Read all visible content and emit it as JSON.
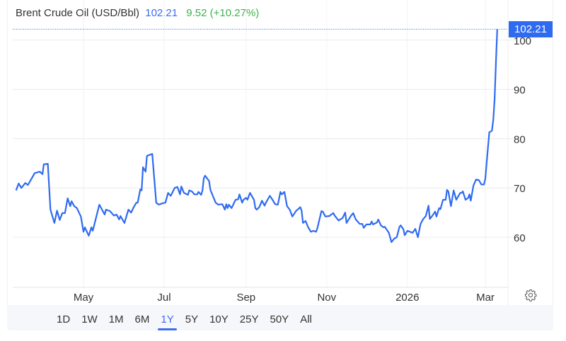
{
  "header": {
    "title": "Brent Crude Oil (USD/Bbl)",
    "price": "102.21",
    "change": "9.52 (+10.27%)"
  },
  "colors": {
    "line": "#2f6bf0",
    "price": "#3b6cf5",
    "change": "#3cb44b",
    "tag_bg": "#2f6bf0"
  },
  "ranges": {
    "items": [
      {
        "label": "1D"
      },
      {
        "label": "1W"
      },
      {
        "label": "1M"
      },
      {
        "label": "6M"
      },
      {
        "label": "1Y",
        "active": true
      },
      {
        "label": "5Y"
      },
      {
        "label": "10Y"
      },
      {
        "label": "25Y"
      },
      {
        "label": "50Y"
      },
      {
        "label": "All"
      }
    ]
  },
  "settings_icon": "gear-icon",
  "chart_data": {
    "type": "line",
    "title": "Brent Crude Oil (USD/Bbl)",
    "xlabel": "",
    "ylabel": "",
    "ylim": [
      49.8,
      102.5
    ],
    "yticks": [
      60,
      70,
      80,
      90,
      100
    ],
    "ytick_labels": [
      "60",
      "70",
      "80",
      "90",
      "100"
    ],
    "xticks": [
      "2025-05-01",
      "2025-07-01",
      "2025-09-01",
      "2025-11-01",
      "2026-01-01",
      "2026-03-01"
    ],
    "xtick_labels": [
      "May",
      "Jul",
      "Sep",
      "Nov",
      "2026",
      "Mar"
    ],
    "grid": true,
    "last_value_label": "102.21",
    "series": [
      {
        "points": [
          [
            "2025-03-11",
            69.5
          ],
          [
            "2025-03-13",
            70.9
          ],
          [
            "2025-03-15",
            70.0
          ],
          [
            "2025-03-18",
            71.0
          ],
          [
            "2025-03-20",
            70.6
          ],
          [
            "2025-03-23",
            72.0
          ],
          [
            "2025-03-25",
            73.0
          ],
          [
            "2025-03-29",
            73.3
          ],
          [
            "2025-03-31",
            72.8
          ],
          [
            "2025-04-01",
            74.8
          ],
          [
            "2025-04-04",
            74.9
          ],
          [
            "2025-04-06",
            65.6
          ],
          [
            "2025-04-09",
            62.9
          ],
          [
            "2025-04-11",
            65.4
          ],
          [
            "2025-04-13",
            63.5
          ],
          [
            "2025-04-15",
            64.9
          ],
          [
            "2025-04-17",
            64.9
          ],
          [
            "2025-04-19",
            67.9
          ],
          [
            "2025-04-21",
            66.3
          ],
          [
            "2025-04-22",
            67.3
          ],
          [
            "2025-04-24",
            66.3
          ],
          [
            "2025-04-26",
            65.9
          ],
          [
            "2025-04-29",
            64.2
          ],
          [
            "2025-05-01",
            61.1
          ],
          [
            "2025-05-02",
            62.0
          ],
          [
            "2025-05-05",
            60.3
          ],
          [
            "2025-05-07",
            62.0
          ],
          [
            "2025-05-08",
            61.3
          ],
          [
            "2025-05-10",
            63.4
          ],
          [
            "2025-05-13",
            66.6
          ],
          [
            "2025-05-17",
            64.6
          ],
          [
            "2025-05-18",
            65.6
          ],
          [
            "2025-05-21",
            65.3
          ],
          [
            "2025-05-24",
            64.4
          ],
          [
            "2025-05-26",
            64.6
          ],
          [
            "2025-05-28",
            63.6
          ],
          [
            "2025-05-29",
            64.3
          ],
          [
            "2025-06-01",
            62.9
          ],
          [
            "2025-06-04",
            65.6
          ],
          [
            "2025-06-06",
            65.0
          ],
          [
            "2025-06-08",
            66.1
          ],
          [
            "2025-06-10",
            67.0
          ],
          [
            "2025-06-11",
            67.0
          ],
          [
            "2025-06-13",
            69.7
          ],
          [
            "2025-06-14",
            69.5
          ],
          [
            "2025-06-15",
            74.2
          ],
          [
            "2025-06-17",
            73.3
          ],
          [
            "2025-06-18",
            76.5
          ],
          [
            "2025-06-22",
            76.9
          ],
          [
            "2025-06-25",
            67.0
          ],
          [
            "2025-06-27",
            66.6
          ],
          [
            "2025-06-30",
            66.9
          ],
          [
            "2025-07-02",
            67.0
          ],
          [
            "2025-07-04",
            69.0
          ],
          [
            "2025-07-06",
            68.4
          ],
          [
            "2025-07-09",
            70.0
          ],
          [
            "2025-07-11",
            70.2
          ],
          [
            "2025-07-13",
            68.7
          ],
          [
            "2025-07-14",
            70.3
          ],
          [
            "2025-07-16",
            69.0
          ],
          [
            "2025-07-19",
            68.6
          ],
          [
            "2025-07-20",
            69.5
          ],
          [
            "2025-07-22",
            69.3
          ],
          [
            "2025-07-24",
            68.7
          ],
          [
            "2025-07-26",
            68.7
          ],
          [
            "2025-07-27",
            69.2
          ],
          [
            "2025-07-29",
            68.6
          ],
          [
            "2025-07-30",
            69.5
          ],
          [
            "2025-07-31",
            71.9
          ],
          [
            "2025-08-01",
            72.5
          ],
          [
            "2025-08-04",
            71.4
          ],
          [
            "2025-08-05",
            69.6
          ],
          [
            "2025-08-09",
            67.0
          ],
          [
            "2025-08-11",
            66.6
          ],
          [
            "2025-08-14",
            66.7
          ],
          [
            "2025-08-16",
            65.6
          ],
          [
            "2025-08-17",
            66.7
          ],
          [
            "2025-08-18",
            65.9
          ],
          [
            "2025-08-19",
            66.6
          ],
          [
            "2025-08-21",
            65.9
          ],
          [
            "2025-08-24",
            67.6
          ],
          [
            "2025-08-26",
            67.7
          ],
          [
            "2025-08-27",
            68.7
          ],
          [
            "2025-08-29",
            67.0
          ],
          [
            "2025-08-30",
            67.6
          ],
          [
            "2025-09-01",
            68.0
          ],
          [
            "2025-09-02",
            67.6
          ],
          [
            "2025-09-04",
            69.0
          ],
          [
            "2025-09-07",
            67.6
          ],
          [
            "2025-09-08",
            65.9
          ],
          [
            "2025-09-09",
            65.6
          ],
          [
            "2025-09-11",
            66.1
          ],
          [
            "2025-09-13",
            67.4
          ],
          [
            "2025-09-15",
            66.4
          ],
          [
            "2025-09-16",
            67.0
          ],
          [
            "2025-09-19",
            68.4
          ],
          [
            "2025-09-21",
            67.6
          ],
          [
            "2025-09-23",
            66.7
          ],
          [
            "2025-09-25",
            66.6
          ],
          [
            "2025-09-27",
            69.2
          ],
          [
            "2025-09-28",
            68.7
          ],
          [
            "2025-09-30",
            69.2
          ],
          [
            "2025-10-02",
            66.3
          ],
          [
            "2025-10-04",
            65.6
          ],
          [
            "2025-10-06",
            64.2
          ],
          [
            "2025-10-09",
            65.4
          ],
          [
            "2025-10-10",
            65.6
          ],
          [
            "2025-10-12",
            66.1
          ],
          [
            "2025-10-13",
            65.4
          ],
          [
            "2025-10-14",
            62.9
          ],
          [
            "2025-10-16",
            63.3
          ],
          [
            "2025-10-18",
            62.0
          ],
          [
            "2025-10-20",
            61.1
          ],
          [
            "2025-10-22",
            61.3
          ],
          [
            "2025-10-24",
            61.1
          ],
          [
            "2025-10-25",
            61.9
          ],
          [
            "2025-10-28",
            65.3
          ],
          [
            "2025-10-29",
            65.2
          ],
          [
            "2025-10-31",
            64.2
          ],
          [
            "2025-11-03",
            64.3
          ],
          [
            "2025-11-06",
            64.9
          ],
          [
            "2025-11-07",
            64.4
          ],
          [
            "2025-11-10",
            63.4
          ],
          [
            "2025-11-13",
            63.9
          ],
          [
            "2025-11-15",
            65.0
          ],
          [
            "2025-11-16",
            62.9
          ],
          [
            "2025-11-19",
            64.2
          ],
          [
            "2025-11-21",
            64.9
          ],
          [
            "2025-11-23",
            63.6
          ],
          [
            "2025-11-26",
            62.7
          ],
          [
            "2025-11-28",
            62.7
          ],
          [
            "2025-11-29",
            61.9
          ],
          [
            "2025-12-01",
            62.6
          ],
          [
            "2025-12-04",
            62.6
          ],
          [
            "2025-12-05",
            63.2
          ],
          [
            "2025-12-06",
            62.6
          ],
          [
            "2025-12-09",
            63.0
          ],
          [
            "2025-12-10",
            63.6
          ],
          [
            "2025-12-12",
            62.4
          ],
          [
            "2025-12-14",
            62.0
          ],
          [
            "2025-12-15",
            62.1
          ],
          [
            "2025-12-17",
            61.3
          ],
          [
            "2025-12-18",
            60.9
          ],
          [
            "2025-12-20",
            59.0
          ],
          [
            "2025-12-22",
            59.7
          ],
          [
            "2025-12-24",
            60.0
          ],
          [
            "2025-12-26",
            62.1
          ],
          [
            "2025-12-27",
            62.4
          ],
          [
            "2025-12-29",
            61.6
          ],
          [
            "2025-12-30",
            60.4
          ],
          [
            "2026-01-01",
            61.3
          ],
          [
            "2026-01-03",
            61.1
          ],
          [
            "2026-01-05",
            60.9
          ],
          [
            "2026-01-07",
            61.7
          ],
          [
            "2026-01-09",
            60.0
          ],
          [
            "2026-01-11",
            62.7
          ],
          [
            "2026-01-13",
            63.7
          ],
          [
            "2026-01-15",
            64.3
          ],
          [
            "2026-01-17",
            66.4
          ],
          [
            "2026-01-18",
            63.7
          ],
          [
            "2026-01-20",
            64.4
          ],
          [
            "2026-01-22",
            65.2
          ],
          [
            "2026-01-23",
            64.2
          ],
          [
            "2026-01-25",
            65.9
          ],
          [
            "2026-01-26",
            65.7
          ],
          [
            "2026-01-28",
            67.6
          ],
          [
            "2026-01-30",
            67.6
          ],
          [
            "2026-01-31",
            69.6
          ],
          [
            "2026-02-01",
            69.3
          ],
          [
            "2026-02-03",
            66.3
          ],
          [
            "2026-02-05",
            69.5
          ],
          [
            "2026-02-07",
            67.6
          ],
          [
            "2026-02-10",
            69.0
          ],
          [
            "2026-02-11",
            69.0
          ],
          [
            "2026-02-12",
            69.3
          ],
          [
            "2026-02-14",
            67.6
          ],
          [
            "2026-02-16",
            68.0
          ],
          [
            "2026-02-17",
            68.7
          ],
          [
            "2026-02-18",
            67.4
          ],
          [
            "2026-02-20",
            70.5
          ],
          [
            "2026-02-22",
            71.7
          ],
          [
            "2026-02-24",
            71.6
          ],
          [
            "2026-02-26",
            70.7
          ],
          [
            "2026-02-28",
            70.7
          ],
          [
            "2026-03-01",
            71.9
          ],
          [
            "2026-03-02",
            75.2
          ],
          [
            "2026-03-04",
            81.3
          ],
          [
            "2026-03-06",
            81.6
          ],
          [
            "2026-03-07",
            83.8
          ],
          [
            "2026-03-08",
            88.0
          ],
          [
            "2026-03-09",
            95.2
          ],
          [
            "2026-03-10",
            102.21
          ]
        ]
      }
    ]
  }
}
